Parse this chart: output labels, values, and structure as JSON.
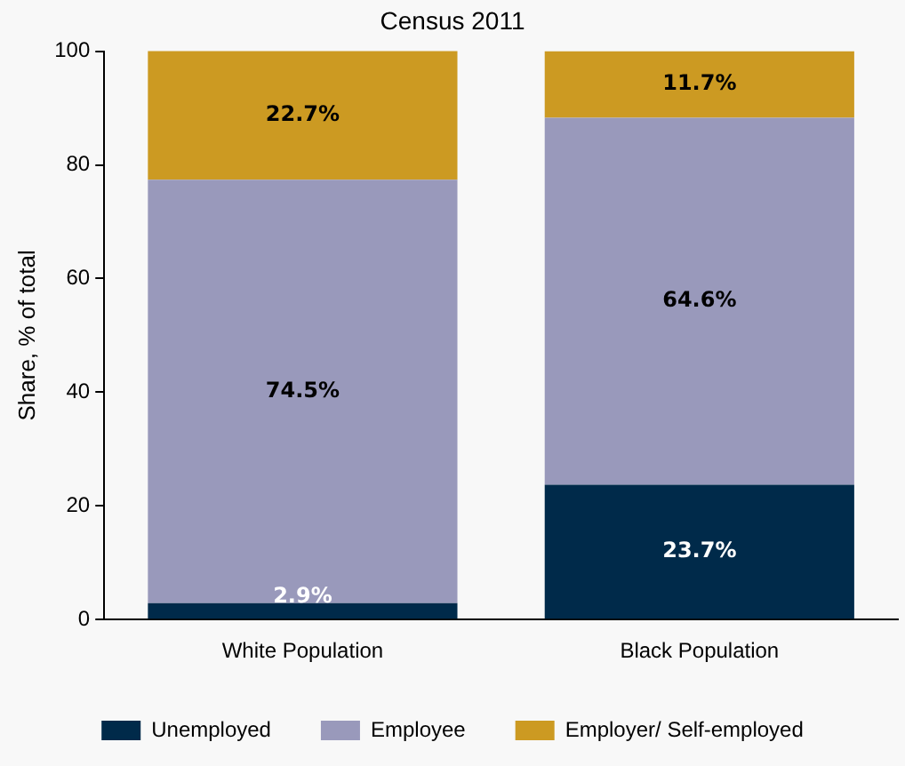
{
  "chart_data": {
    "type": "bar",
    "title": "Census 2011",
    "ylabel": "Share, % of total",
    "categories": [
      "White Population",
      "Black Population"
    ],
    "stacked": true,
    "ylim": [
      0,
      100
    ],
    "yticks": [
      0,
      20,
      40,
      60,
      80,
      100
    ],
    "grid": false,
    "legend": "bottom",
    "series": [
      {
        "name": "Unemployed",
        "color": "#002a4a",
        "values": [
          2.9,
          23.7
        ],
        "value_labels": [
          "2.9%",
          "23.7%"
        ]
      },
      {
        "name": "Employee",
        "color": "#9999bb",
        "values": [
          74.5,
          64.6
        ],
        "value_labels": [
          "74.5%",
          "64.6%"
        ]
      },
      {
        "name": "Employer/ Self-employed",
        "color": "#cc9a22",
        "values": [
          22.7,
          11.7
        ],
        "value_labels": [
          "22.7%",
          "11.7%"
        ]
      }
    ]
  }
}
